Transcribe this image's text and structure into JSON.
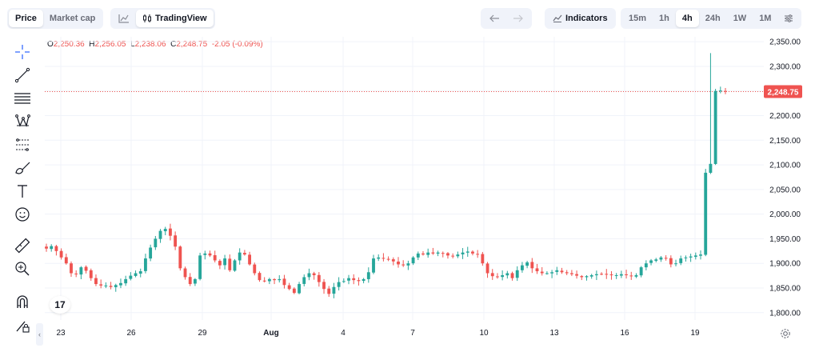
{
  "toolbar": {
    "price_tab": "Price",
    "marketcap_tab": "Market cap",
    "tradingview_label": "TradingView",
    "indicators_label": "Indicators",
    "timeframes": [
      "15m",
      "1h",
      "4h",
      "24h",
      "1W",
      "1M"
    ],
    "active_timeframe": "4h"
  },
  "ohlc": {
    "o_label": "O",
    "o": "2,250.36",
    "h_label": "H",
    "h": "2,256.05",
    "l_label": "L",
    "l": "2,238.06",
    "c_label": "C",
    "c": "2,248.75",
    "change": "-2.05 (-0.09%)"
  },
  "price_tag": "2,248.75",
  "tv_logo": "17",
  "icons": {
    "crosshair": "crosshair-icon",
    "trendline": "trend-line-icon",
    "horizontal_lines": "horizontal-lines-icon",
    "pattern": "pattern-icon",
    "fib": "fib-retracement-icon",
    "brush": "brush-icon",
    "text": "text-icon",
    "emoji": "emoji-icon",
    "ruler": "ruler-icon",
    "zoom": "zoom-in-icon",
    "magnet": "magnet-icon",
    "lock_pencil": "lock-drawing-icon",
    "settings": "gear-icon"
  },
  "colors": {
    "up": "#26a69a",
    "down": "#ef5350",
    "grid": "#f0f3fa",
    "axis_text": "#131722"
  },
  "chart_data": {
    "type": "candlestick",
    "x_tick_labels": [
      "23",
      "26",
      "29",
      "Aug",
      "4",
      "7",
      "10",
      "13",
      "16",
      "19"
    ],
    "y_tick_labels": [
      "2,350.00",
      "2,300.00",
      "2,250.00",
      "2,200.00",
      "2,150.00",
      "2,100.00",
      "2,050.00",
      "2,000.00",
      "1,950.00",
      "1,900.00",
      "1,850.00",
      "1,800.00"
    ],
    "ylim": [
      1785,
      2360
    ],
    "last_price": 2248.75,
    "closes": [
      1930,
      1935,
      1925,
      1912,
      1900,
      1880,
      1878,
      1892,
      1885,
      1870,
      1858,
      1855,
      1855,
      1852,
      1856,
      1860,
      1868,
      1875,
      1880,
      1884,
      1910,
      1932,
      1950,
      1966,
      1970,
      1956,
      1934,
      1890,
      1872,
      1858,
      1868,
      1916,
      1920,
      1916,
      1906,
      1896,
      1910,
      1886,
      1906,
      1922,
      1918,
      1898,
      1880,
      1866,
      1864,
      1868,
      1866,
      1868,
      1856,
      1848,
      1840,
      1858,
      1872,
      1880,
      1876,
      1862,
      1848,
      1838,
      1852,
      1862,
      1864,
      1870,
      1866,
      1864,
      1868,
      1882,
      1910,
      1912,
      1910,
      1908,
      1904,
      1898,
      1896,
      1900,
      1912,
      1920,
      1918,
      1922,
      1920,
      1922,
      1920,
      1916,
      1914,
      1918,
      1922,
      1924,
      1920,
      1918,
      1900,
      1880,
      1874,
      1872,
      1876,
      1880,
      1870,
      1886,
      1896,
      1902,
      1890,
      1884,
      1880,
      1880,
      1882,
      1886,
      1882,
      1880,
      1878,
      1875,
      1872,
      1874,
      1876,
      1878,
      1878,
      1877,
      1876,
      1876,
      1878,
      1876,
      1874,
      1876,
      1892,
      1900,
      1906,
      1908,
      1912,
      1910,
      1898,
      1900,
      1910,
      1912,
      1914,
      1916,
      1918,
      2084,
      2102,
      2250,
      2251,
      2249
    ]
  }
}
